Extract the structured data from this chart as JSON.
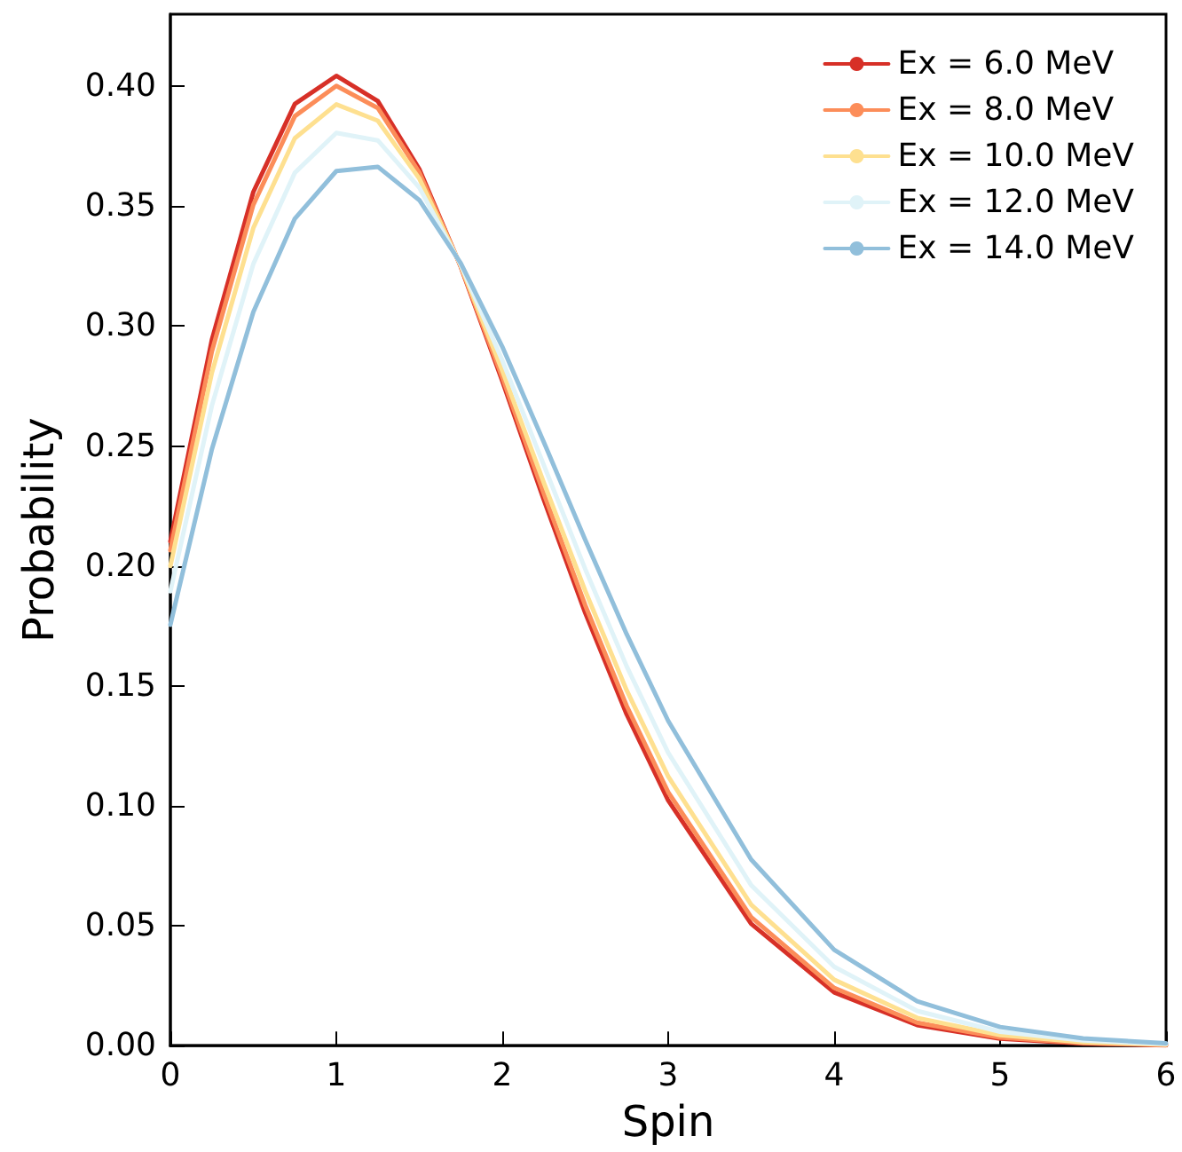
{
  "chart_data": {
    "type": "line",
    "xlabel": "Spin",
    "ylabel": "Probability",
    "x": [
      0,
      0.25,
      0.5,
      0.75,
      1,
      1.25,
      1.5,
      1.75,
      2,
      2.25,
      2.5,
      2.75,
      3,
      3.5,
      4,
      4.5,
      5,
      5.5,
      6
    ],
    "series": [
      {
        "name": "Ex = 6.0 MeV",
        "color": "#d73027",
        "values": [
          0.2102,
          0.2942,
          0.3559,
          0.3926,
          0.4043,
          0.3938,
          0.3654,
          0.3247,
          0.2771,
          0.2276,
          0.1804,
          0.1381,
          0.1022,
          0.0508,
          0.0222,
          0.0086,
          0.0029,
          0.0009,
          0.0002
        ]
      },
      {
        "name": "Ex = 8.0 MeV",
        "color": "#fc8d59",
        "values": [
          0.2065,
          0.2894,
          0.3506,
          0.3875,
          0.4001,
          0.3909,
          0.364,
          0.3249,
          0.2786,
          0.2302,
          0.1836,
          0.1416,
          0.1057,
          0.0536,
          0.0241,
          0.0096,
          0.0034,
          0.0011,
          0.0003
        ]
      },
      {
        "name": "Ex = 10.0 MeV",
        "color": "#fee090",
        "values": [
          0.2,
          0.2805,
          0.3409,
          0.3783,
          0.3924,
          0.3856,
          0.3615,
          0.3252,
          0.2814,
          0.2348,
          0.1896,
          0.1481,
          0.1122,
          0.0588,
          0.0275,
          0.0116,
          0.0044,
          0.0015,
          0.0004
        ]
      },
      {
        "name": "Ex = 12.0 MeV",
        "color": "#e0f3f8",
        "values": [
          0.1894,
          0.2668,
          0.3259,
          0.3639,
          0.3805,
          0.3774,
          0.3577,
          0.3256,
          0.2857,
          0.2421,
          0.1987,
          0.1581,
          0.1221,
          0.0669,
          0.0329,
          0.0145,
          0.0058,
          0.0022,
          0.0007
        ]
      },
      {
        "name": "Ex = 14.0 MeV",
        "color": "#91bfdb",
        "values": [
          0.1755,
          0.2486,
          0.3059,
          0.3448,
          0.3646,
          0.3664,
          0.3525,
          0.3262,
          0.2914,
          0.2517,
          0.2109,
          0.1715,
          0.1354,
          0.0776,
          0.04,
          0.0185,
          0.0078,
          0.003,
          0.001
        ]
      }
    ],
    "xlim": [
      0,
      6
    ],
    "ylim": [
      0,
      0.43
    ],
    "xticks": [
      0,
      1,
      2,
      3,
      4,
      5,
      6
    ],
    "yticks": [
      {
        "value": 0,
        "label": "0.00"
      },
      {
        "value": 0.05,
        "label": "0.05"
      },
      {
        "value": 0.1,
        "label": "0.10"
      },
      {
        "value": 0.15,
        "label": "0.15"
      },
      {
        "value": 0.2,
        "label": "0.20"
      },
      {
        "value": 0.25,
        "label": "0.25"
      },
      {
        "value": 0.3,
        "label": "0.30"
      },
      {
        "value": 0.35,
        "label": "0.35"
      },
      {
        "value": 0.4,
        "label": "0.40"
      }
    ],
    "grid": false,
    "legend": "top right",
    "marker": "none",
    "line_style": "solid"
  }
}
